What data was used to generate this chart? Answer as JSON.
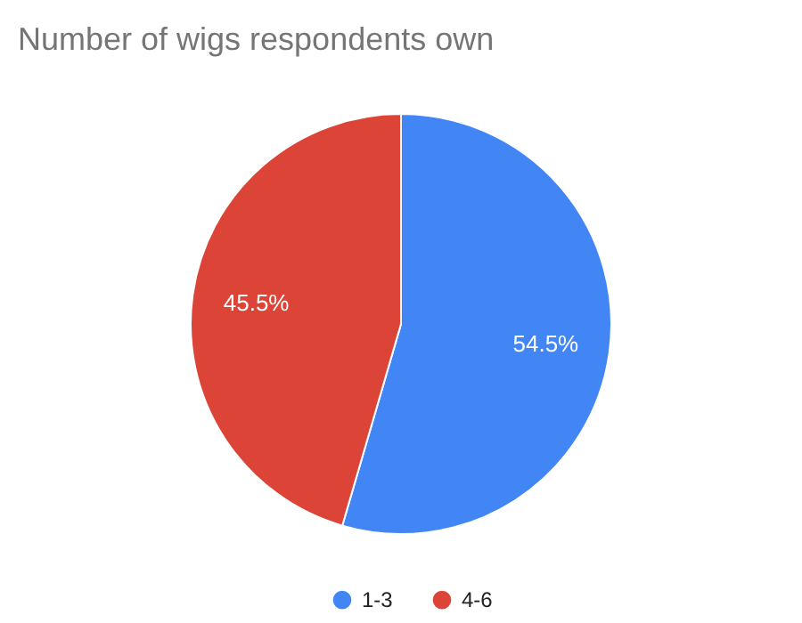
{
  "chart_data": {
    "type": "pie",
    "title": "Number of wigs respondents own",
    "categories": [
      "1-3",
      "4-6"
    ],
    "values": [
      54.5,
      45.5
    ],
    "colors": [
      "#4285f4",
      "#db4437"
    ],
    "value_labels": [
      "54.5%",
      "45.5%"
    ],
    "legend": "bottom"
  }
}
